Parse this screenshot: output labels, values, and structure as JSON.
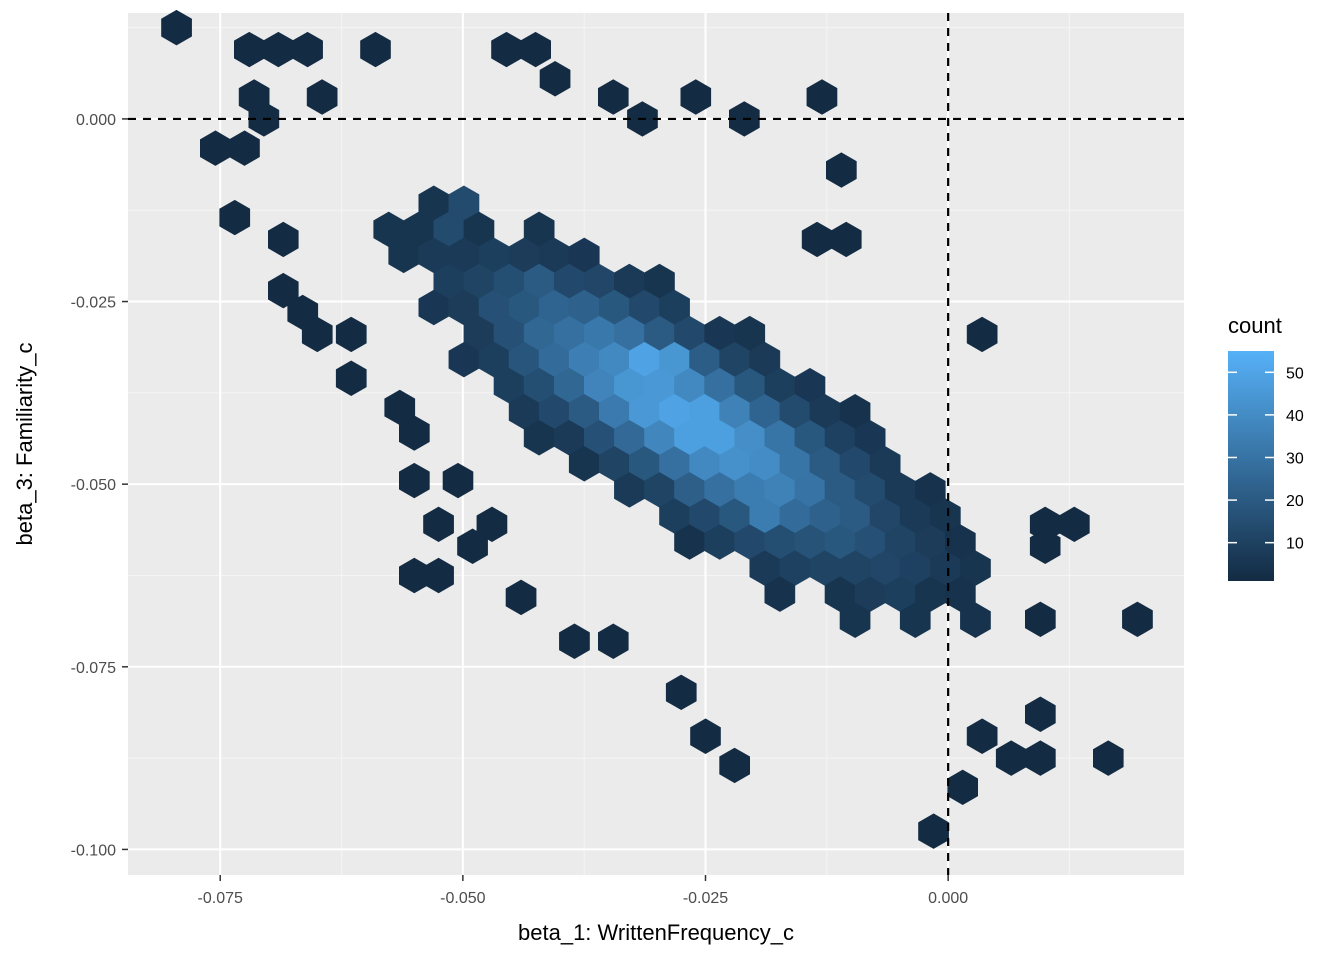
{
  "chart_data": {
    "type": "hexbin",
    "xlabel": "beta_1: WrittenFrequency_c",
    "ylabel": "beta_3: Familiarity_c",
    "xlim": [
      -0.0845,
      0.0243
    ],
    "ylim": [
      -0.1035,
      0.0145
    ],
    "x_ticks": [
      -0.075,
      -0.05,
      -0.025,
      0.0
    ],
    "x_tick_labels": [
      "-0.075",
      "-0.050",
      "-0.025",
      "0.000"
    ],
    "y_ticks": [
      0.0,
      -0.025,
      -0.05,
      -0.075,
      -0.1
    ],
    "y_tick_labels": [
      "0.000",
      "-0.025",
      "-0.050",
      "-0.075",
      "-0.100"
    ],
    "reference_lines": {
      "vertical_x": 0.0,
      "horizontal_y": 0.0,
      "style": "dashed"
    },
    "grid": true,
    "hex_width": 0.0031,
    "legend": {
      "title": "count",
      "placement": "right",
      "ticks": [
        10,
        20,
        30,
        40,
        50
      ],
      "range": [
        1,
        55
      ],
      "color_low": "#132b43",
      "color_high": "#56b1f7"
    },
    "hexbins": {
      "note": "x, y in data units; c = bin count",
      "outliers": [
        [
          -0.0795,
          0.0125,
          1
        ],
        [
          -0.072,
          0.0095,
          1
        ],
        [
          -0.069,
          0.0095,
          1
        ],
        [
          -0.066,
          0.0095,
          1
        ],
        [
          -0.059,
          0.0095,
          1
        ],
        [
          -0.0455,
          0.0095,
          1
        ],
        [
          -0.0425,
          0.0095,
          1
        ],
        [
          -0.0405,
          0.0055,
          1
        ],
        [
          -0.0715,
          0.003,
          1
        ],
        [
          -0.0645,
          0.003,
          1
        ],
        [
          -0.0345,
          0.003,
          1
        ],
        [
          -0.026,
          0.003,
          1
        ],
        [
          -0.013,
          0.003,
          1
        ],
        [
          -0.0705,
          0.0,
          1
        ],
        [
          -0.0315,
          0.0,
          1
        ],
        [
          -0.021,
          0.0,
          1
        ],
        [
          -0.0755,
          -0.004,
          1
        ],
        [
          -0.0725,
          -0.004,
          1
        ],
        [
          -0.011,
          -0.007,
          1
        ],
        [
          -0.0735,
          -0.0135,
          1
        ],
        [
          -0.0685,
          -0.0165,
          1
        ],
        [
          -0.0135,
          -0.0165,
          1
        ],
        [
          -0.0105,
          -0.0165,
          1
        ],
        [
          -0.0685,
          -0.0235,
          1
        ],
        [
          -0.0665,
          -0.0265,
          1
        ],
        [
          -0.065,
          -0.0295,
          1
        ],
        [
          -0.0615,
          -0.0295,
          1
        ],
        [
          0.0035,
          -0.0295,
          1
        ],
        [
          -0.0615,
          -0.0355,
          1
        ],
        [
          -0.0565,
          -0.0395,
          1
        ],
        [
          -0.055,
          -0.043,
          1
        ],
        [
          -0.055,
          -0.0495,
          1
        ],
        [
          -0.0505,
          -0.0495,
          1
        ],
        [
          -0.0525,
          -0.0555,
          1
        ],
        [
          -0.047,
          -0.0555,
          1
        ],
        [
          -0.049,
          -0.0585,
          1
        ],
        [
          -0.055,
          -0.0625,
          1
        ],
        [
          -0.0525,
          -0.0625,
          1
        ],
        [
          -0.044,
          -0.0655,
          1
        ],
        [
          -0.0385,
          -0.0715,
          1
        ],
        [
          -0.0345,
          -0.0715,
          1
        ],
        [
          -0.0275,
          -0.0785,
          1
        ],
        [
          -0.025,
          -0.0845,
          1
        ],
        [
          -0.022,
          -0.0885,
          1
        ],
        [
          0.01,
          -0.0555,
          1
        ],
        [
          0.013,
          -0.0555,
          1
        ],
        [
          0.01,
          -0.0585,
          1
        ],
        [
          0.0195,
          -0.0685,
          1
        ],
        [
          0.0095,
          -0.0685,
          1
        ],
        [
          0.0095,
          -0.0815,
          1
        ],
        [
          0.0035,
          -0.0845,
          1
        ],
        [
          0.0065,
          -0.0875,
          1
        ],
        [
          0.0095,
          -0.0875,
          1
        ],
        [
          0.0165,
          -0.0875,
          1
        ],
        [
          0.0015,
          -0.0915,
          1
        ],
        [
          -0.0015,
          -0.0975,
          1
        ]
      ],
      "body_note": "dense central cloud of bins along the negative diagonal",
      "body_peaks": [
        [
          -0.03,
          -0.0335,
          55
        ],
        [
          -0.0275,
          -0.0385,
          50
        ],
        [
          -0.025,
          -0.0455,
          46
        ],
        [
          -0.0195,
          -0.0455,
          44
        ],
        [
          -0.0195,
          -0.0555,
          38
        ],
        [
          -0.0285,
          -0.0365,
          36
        ],
        [
          -0.0255,
          -0.0405,
          32
        ],
        [
          -0.0325,
          -0.0395,
          30
        ],
        [
          -0.0215,
          -0.0495,
          30
        ],
        [
          -0.0365,
          -0.0295,
          26
        ],
        [
          -0.0415,
          -0.0235,
          22
        ],
        [
          -0.0505,
          -0.0135,
          18
        ]
      ]
    }
  }
}
